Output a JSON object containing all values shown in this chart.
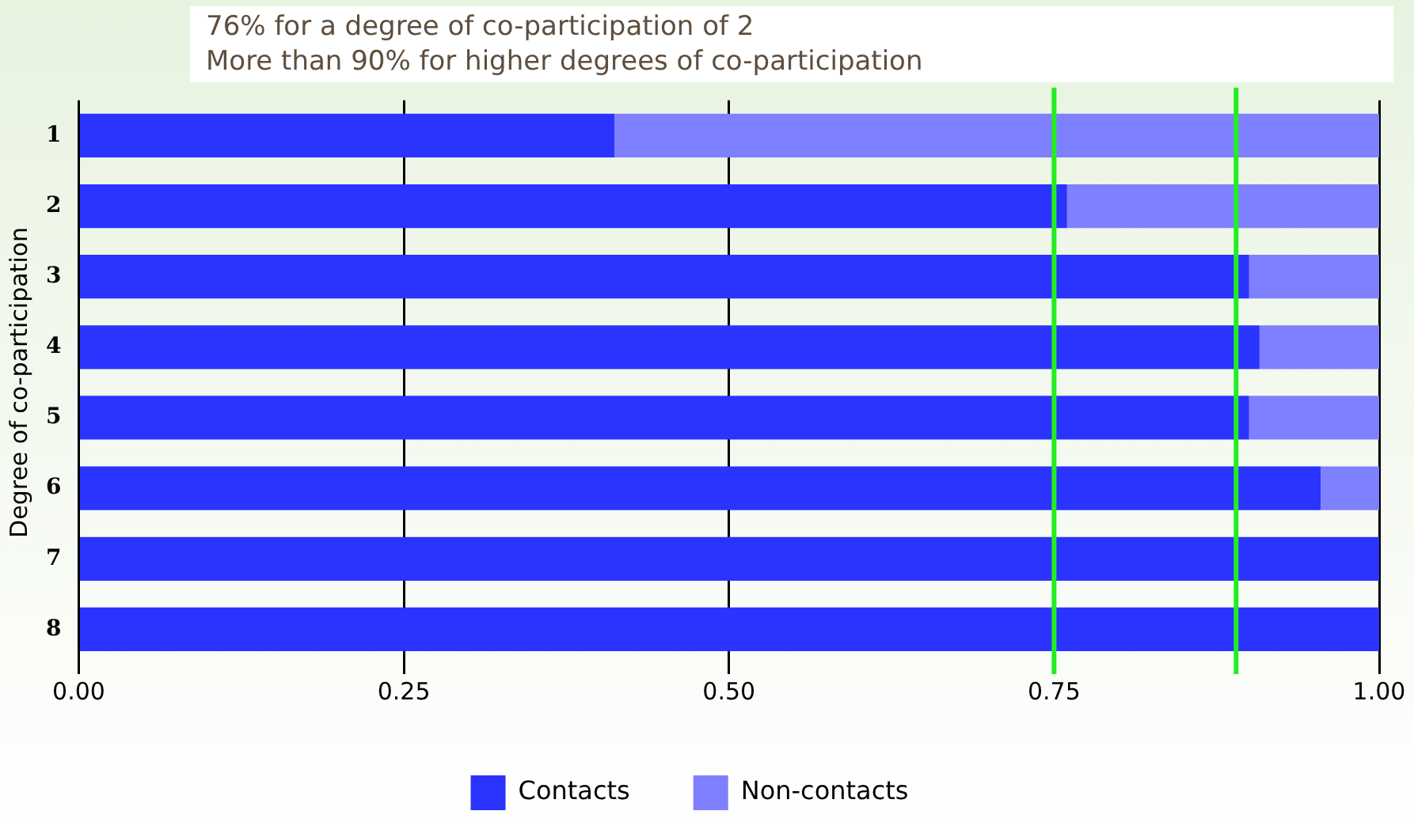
{
  "chart_data": {
    "type": "bar",
    "orientation": "horizontal",
    "stacked": true,
    "ylabel": "Degree of co-participation",
    "categories": [
      "1",
      "2",
      "3",
      "4",
      "5",
      "6",
      "7",
      "8"
    ],
    "series": [
      {
        "name": "Contacts",
        "color": "#2b33ff",
        "values": [
          0.412,
          0.76,
          0.9,
          0.908,
          0.9,
          0.955,
          1,
          1
        ]
      },
      {
        "name": "Non-contacts",
        "color": "#7f80ff",
        "values": [
          0.588,
          0.24,
          0.1,
          0.092,
          0.1,
          0.045,
          0,
          0
        ]
      }
    ],
    "xlim": [
      0,
      1
    ],
    "xticks": [
      {
        "value": 0,
        "label": "0.00"
      },
      {
        "value": 0.25,
        "label": "0.25"
      },
      {
        "value": 0.5,
        "label": "0.50"
      },
      {
        "value": 0.75,
        "label": "0.75"
      },
      {
        "value": 1,
        "label": "1.00"
      }
    ],
    "grid": "x",
    "legend": "bottom",
    "ref_lines": [
      {
        "axis": "x",
        "value": 0.75,
        "color": "#22ee22"
      },
      {
        "axis": "x",
        "value": 0.89,
        "color": "#22ee22"
      }
    ],
    "annotations": [
      "76% for a degree of co-participation of 2",
      "More than 90% for higher degrees of co-participation"
    ]
  }
}
